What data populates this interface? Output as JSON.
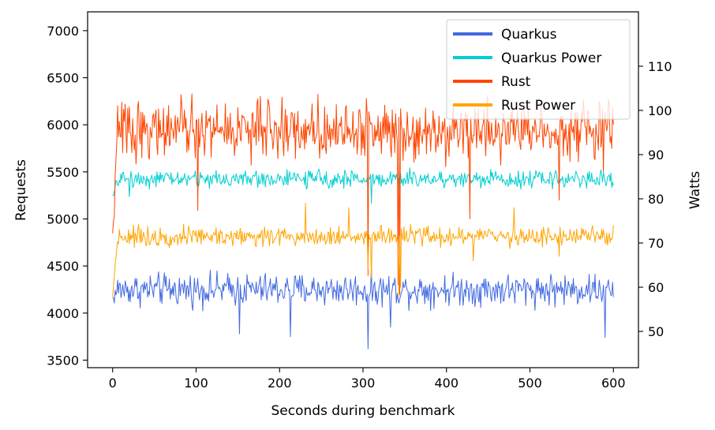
{
  "chart_data": {
    "type": "line",
    "xlabel": "Seconds during benchmark",
    "ylabel": "Requests",
    "y2label": "Watts",
    "xlim": [
      -30,
      630
    ],
    "ylim": [
      3420,
      7200
    ],
    "y2lim": [
      41.8,
      122.3
    ],
    "xticks": [
      0,
      100,
      200,
      300,
      400,
      500,
      600
    ],
    "yticks": [
      3500,
      4000,
      4500,
      5000,
      5500,
      6000,
      6500,
      7000
    ],
    "y2ticks": [
      50,
      60,
      70,
      80,
      90,
      100,
      110
    ],
    "legend_position": "top-right",
    "series": [
      {
        "name": "Quarkus",
        "axis": "left",
        "color": "#4169e1",
        "x_start": 0,
        "x_step": 1,
        "start": 4150,
        "mean": 4250,
        "noise": 140,
        "dips": [
          [
            306,
            3620
          ],
          [
            213,
            3750
          ],
          [
            590,
            3740
          ],
          [
            152,
            3780
          ],
          [
            333,
            3850
          ]
        ],
        "end": 4170
      },
      {
        "name": "Quarkus Power",
        "axis": "right",
        "color": "#00ced1",
        "x_start": 0,
        "x_step": 1,
        "start": 80,
        "mean": 84.5,
        "noise": 1.6,
        "dips": [
          [
            310,
            79
          ],
          [
            343,
            81
          ],
          [
            20,
            80.5
          ]
        ],
        "end": 83
      },
      {
        "name": "Rust",
        "axis": "left",
        "color": "#ff4500",
        "x_start": 0,
        "x_step": 1,
        "start": 4800,
        "mean": 5950,
        "noise": 250,
        "dips": [
          [
            306,
            4400
          ],
          [
            342,
            4300
          ],
          [
            344,
            4200
          ],
          [
            102,
            5090
          ],
          [
            428,
            5000
          ],
          [
            535,
            5200
          ],
          [
            588,
            5500
          ]
        ],
        "end": 6000
      },
      {
        "name": "Rust Power",
        "axis": "right",
        "color": "#ffa500",
        "x_start": 0,
        "x_step": 1,
        "start": 58,
        "mean": 71.5,
        "noise": 1.8,
        "dips": [
          [
            306,
            64
          ],
          [
            310,
            62
          ],
          [
            343,
            58
          ],
          [
            345,
            60
          ],
          [
            432,
            66
          ],
          [
            535,
            67
          ]
        ],
        "spikes": [
          [
            231,
            79
          ],
          [
            283,
            78
          ],
          [
            481,
            78
          ]
        ],
        "end": 74
      }
    ]
  }
}
